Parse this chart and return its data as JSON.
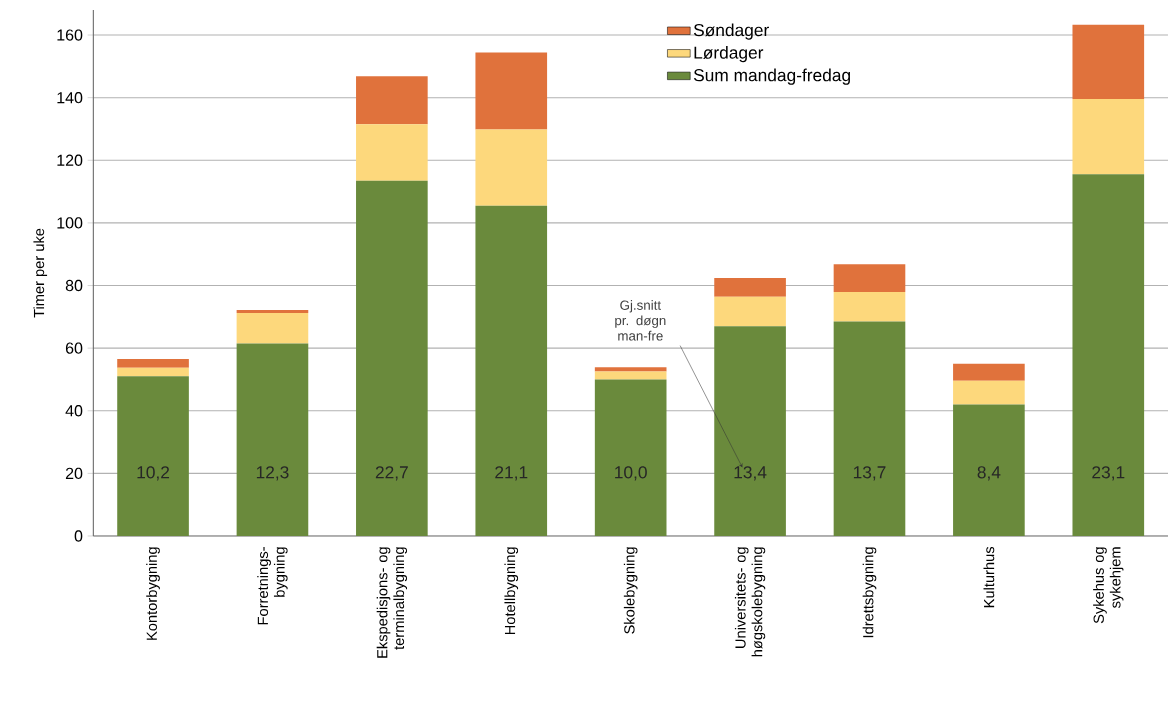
{
  "chart_data": {
    "type": "bar",
    "stacked": true,
    "ylabel": "Timer per uke",
    "categories": [
      "Kontorbygning",
      "Forretnings-bygning",
      "Ekspedisjons- og terminalbygning",
      "Hotellbygning",
      "Skolebygning",
      "Universitets- og høgskolebygning",
      "Idrettsbygning",
      "Kulturhus",
      "Sykehus og sykehjem"
    ],
    "series": [
      {
        "name": "Sum mandag-fredag",
        "color": "#6a8a3c",
        "values": [
          51,
          61.5,
          113.5,
          105.5,
          50,
          67,
          68.5,
          42,
          115.5
        ]
      },
      {
        "name": "Lørdager",
        "color": "#fdd87c",
        "values": [
          2.7,
          9.7,
          18,
          24.3,
          2.5,
          9.4,
          9.4,
          7.6,
          24.1
        ]
      },
      {
        "name": "Søndager",
        "color": "#e0723c",
        "values": [
          2.8,
          1.0,
          15.3,
          24.6,
          1.4,
          6,
          8.9,
          5.4,
          23.7
        ]
      }
    ],
    "annotations": [
      "Gj.snitt pr. døgn man-fre",
      "10,2",
      "12,3",
      "22,7",
      "21,1",
      "10,0",
      "13,4",
      "13,7",
      "8,4",
      "23,1"
    ],
    "ylim": [
      0,
      168
    ],
    "yticks": [
      0,
      20,
      40,
      60,
      80,
      100,
      120,
      140,
      160
    ],
    "grid": "y",
    "legend": "top"
  }
}
